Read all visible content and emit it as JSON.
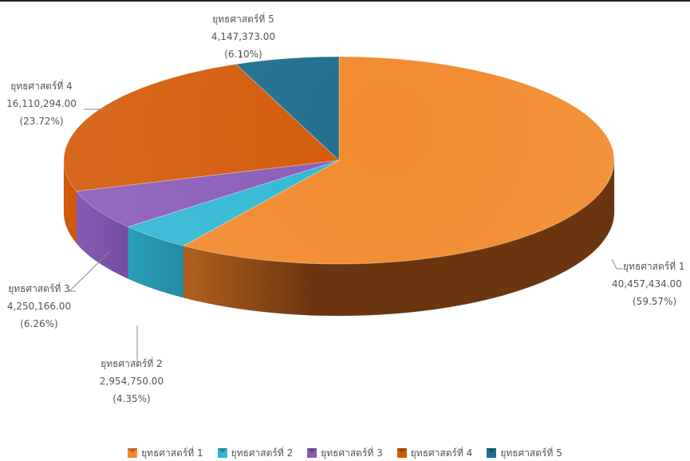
{
  "chart_data": {
    "type": "pie",
    "style": "3d",
    "title": "",
    "slices": [
      {
        "label": "ยุทธศาสตร์ที่ 1",
        "value": 40457434.0,
        "value_text": "40,457,434.00",
        "percent_text": "(59.57%)",
        "color": "#F28A2E",
        "dark": "#6B3510"
      },
      {
        "label": "ยุทธศาสตร์ที่ 2",
        "value": 2954750.0,
        "value_text": "2,954,750.00",
        "percent_text": "(4.35%)",
        "color": "#31B7D3",
        "dark": "#15596A"
      },
      {
        "label": "ยุทธศาสตร์ที่ 3",
        "value": 4250166.0,
        "value_text": "4,250,166.00",
        "percent_text": "(6.26%)",
        "color": "#8A5BB8",
        "dark": "#3F2760"
      },
      {
        "label": "ยุทธศาสตร์ที่ 4",
        "value": 16110294.0,
        "value_text": "16,110,294.00",
        "percent_text": "(23.72%)",
        "color": "#D35A08",
        "dark": "#6E2A02"
      },
      {
        "label": "ยุทธศาสตร์ที่ 5",
        "value": 4147373.0,
        "value_text": "4,147,373.00",
        "percent_text": "(6.10%)",
        "color": "#1F6E8C",
        "dark": "#0C3444"
      }
    ],
    "legend_position": "bottom"
  }
}
